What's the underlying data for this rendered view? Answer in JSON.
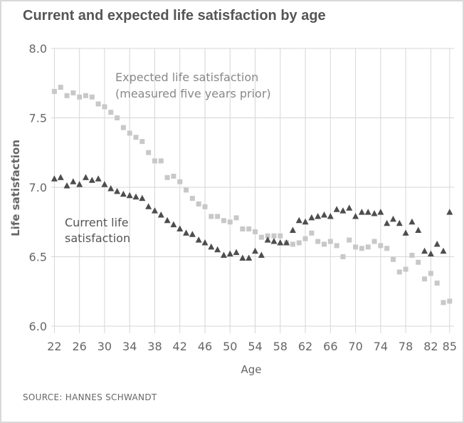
{
  "chart_data": {
    "type": "scatter",
    "title": "Current and expected life satisfaction by age",
    "xlabel": "Age",
    "ylabel": "Life satisfaction",
    "source": "SOURCE: HANNES SCHWANDT",
    "xlim": [
      21.5,
      85.7
    ],
    "ylim": [
      6.0,
      8.0
    ],
    "x_ticks": [
      22,
      26,
      30,
      34,
      38,
      42,
      46,
      50,
      54,
      58,
      62,
      66,
      70,
      74,
      78,
      82,
      85
    ],
    "y_ticks": [
      6.0,
      6.5,
      7.0,
      7.5,
      8.0
    ],
    "y_tick_labels": [
      "6.0",
      "6.5",
      "7.0",
      "7.5",
      "8.0"
    ],
    "grid": true,
    "annotations": {
      "expected": [
        "Expected life satisfaction",
        "(measured five years prior)"
      ],
      "current": [
        "Current life",
        "satisfaction"
      ]
    },
    "series": [
      {
        "label_key": "expected",
        "marker": "square",
        "color": "#c8c8c8",
        "x": [
          22,
          23,
          24,
          25,
          26,
          27,
          28,
          29,
          30,
          31,
          32,
          33,
          34,
          35,
          36,
          37,
          38,
          39,
          40,
          41,
          42,
          43,
          44,
          45,
          46,
          47,
          48,
          49,
          50,
          51,
          52,
          53,
          54,
          55,
          56,
          57,
          58,
          59,
          60,
          61,
          62,
          63,
          64,
          65,
          66,
          67,
          68,
          69,
          70,
          71,
          72,
          73,
          74,
          75,
          76,
          77,
          78,
          79,
          80,
          81,
          82,
          83,
          84,
          85
        ],
        "y": [
          7.69,
          7.72,
          7.66,
          7.68,
          7.65,
          7.66,
          7.65,
          7.6,
          7.58,
          7.54,
          7.5,
          7.43,
          7.39,
          7.36,
          7.33,
          7.25,
          7.19,
          7.19,
          7.07,
          7.08,
          7.04,
          6.98,
          6.92,
          6.88,
          6.86,
          6.79,
          6.79,
          6.76,
          6.75,
          6.78,
          6.7,
          6.7,
          6.68,
          6.64,
          6.65,
          6.65,
          6.65,
          6.6,
          6.59,
          6.6,
          6.63,
          6.67,
          6.61,
          6.59,
          6.61,
          6.58,
          6.5,
          6.62,
          6.57,
          6.56,
          6.57,
          6.61,
          6.58,
          6.56,
          6.48,
          6.39,
          6.41,
          6.51,
          6.46,
          6.34,
          6.38,
          6.31,
          6.17,
          6.18
        ]
      },
      {
        "label_key": "current",
        "marker": "triangle",
        "color": "#4d4d4d",
        "x": [
          22,
          23,
          24,
          25,
          26,
          27,
          28,
          29,
          30,
          31,
          32,
          33,
          34,
          35,
          36,
          37,
          38,
          39,
          40,
          41,
          42,
          43,
          44,
          45,
          46,
          47,
          48,
          49,
          50,
          51,
          52,
          53,
          54,
          55,
          56,
          57,
          58,
          59,
          60,
          61,
          62,
          63,
          64,
          65,
          66,
          67,
          68,
          69,
          70,
          71,
          72,
          73,
          74,
          75,
          76,
          77,
          78,
          79,
          80,
          81,
          82,
          83,
          84,
          85
        ],
        "y": [
          7.06,
          7.07,
          7.01,
          7.04,
          7.02,
          7.07,
          7.05,
          7.06,
          7.02,
          6.99,
          6.97,
          6.95,
          6.94,
          6.93,
          6.92,
          6.86,
          6.83,
          6.8,
          6.76,
          6.73,
          6.7,
          6.67,
          6.66,
          6.62,
          6.6,
          6.57,
          6.55,
          6.51,
          6.52,
          6.53,
          6.49,
          6.49,
          6.54,
          6.51,
          6.62,
          6.61,
          6.6,
          6.6,
          6.69,
          6.76,
          6.75,
          6.78,
          6.79,
          6.8,
          6.79,
          6.84,
          6.83,
          6.85,
          6.79,
          6.82,
          6.82,
          6.81,
          6.82,
          6.74,
          6.77,
          6.74,
          6.67,
          6.75,
          6.69,
          6.54,
          6.52,
          6.59,
          6.54,
          6.82
        ]
      }
    ]
  }
}
